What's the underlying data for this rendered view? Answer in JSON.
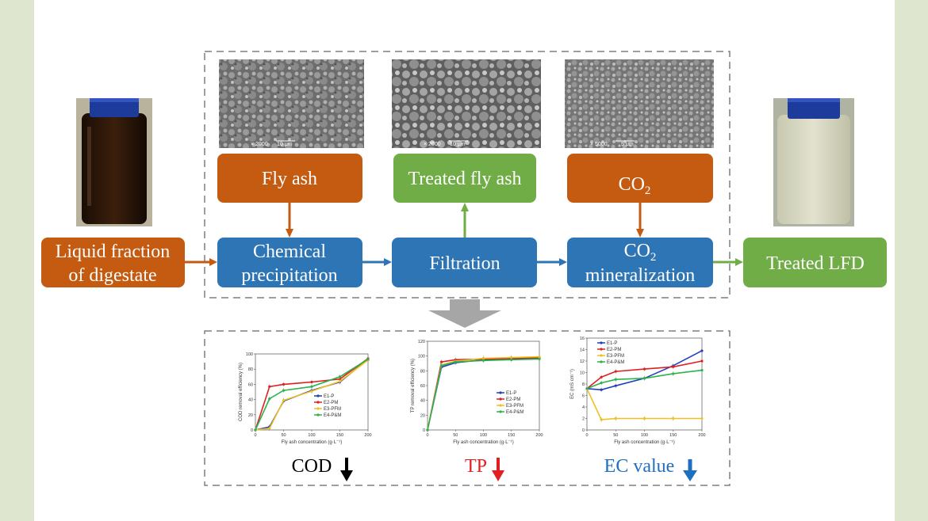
{
  "colors": {
    "orange": "#c55a11",
    "blue": "#2e75b6",
    "green": "#70ad47",
    "e1": "#1f3fbf",
    "e2": "#e02020",
    "e3": "#f0c020",
    "e4": "#2cb34a",
    "tp_arrow": "#e02020",
    "ec_arrow": "#1f6fc0",
    "cod_arrow": "#000000"
  },
  "flow": {
    "input": {
      "line1": "Liquid fraction",
      "line2": "of digestate"
    },
    "fly_ash": "Fly ash",
    "treated_fly_ash": "Treated fly ash",
    "co2": {
      "main": "CO",
      "sub": "2"
    },
    "chemical_precipitation": {
      "line1": "Chemical",
      "line2": "precipitation"
    },
    "filtration": "Filtration",
    "co2_mineralization": {
      "main": "CO",
      "sub": "2",
      "line2": "mineralization"
    },
    "output": "Treated LFD"
  },
  "sem_images": [
    {
      "magnification": "× 2000",
      "scale": "10 μm"
    },
    {
      "magnification": "× 2000",
      "scale": "10 μm"
    },
    {
      "magnification": "× 5000",
      "scale": "5 μm"
    }
  ],
  "indicators": {
    "cod": "COD",
    "tp": "TP",
    "ec": "EC value"
  },
  "chart_data": [
    {
      "type": "line",
      "xlabel": "Fly ash concentration (g·L⁻¹)",
      "ylabel": "COD removal efficiency (%)",
      "xlim": [
        0,
        200
      ],
      "ylim": [
        0,
        100
      ],
      "xticks": [
        0,
        50,
        100,
        150,
        200
      ],
      "yticks": [
        0,
        20,
        40,
        60,
        80,
        100
      ],
      "legend": "center-right",
      "series": [
        {
          "name": "E1-P",
          "x": [
            0,
            25,
            50,
            100,
            150,
            200
          ],
          "y": [
            0,
            4,
            38,
            52,
            63,
            93
          ]
        },
        {
          "name": "E2-PM",
          "x": [
            0,
            25,
            50,
            100,
            150,
            200
          ],
          "y": [
            0,
            57,
            60,
            63,
            67,
            94
          ]
        },
        {
          "name": "E3-PFM",
          "x": [
            0,
            25,
            50,
            100,
            150,
            200
          ],
          "y": [
            0,
            2,
            39,
            51,
            64,
            92
          ]
        },
        {
          "name": "E4-P&M",
          "x": [
            0,
            25,
            50,
            100,
            150,
            200
          ],
          "y": [
            0,
            41,
            52,
            57,
            70,
            93
          ]
        }
      ]
    },
    {
      "type": "line",
      "xlabel": "Fly ash concentration (g·L⁻¹)",
      "ylabel": "TP removal efficiency (%)",
      "xlim": [
        0,
        200
      ],
      "ylim": [
        0,
        120
      ],
      "xticks": [
        0,
        50,
        100,
        150,
        200
      ],
      "yticks": [
        0,
        20,
        40,
        60,
        80,
        100,
        120
      ],
      "legend": "lower-right",
      "series": [
        {
          "name": "E1-P",
          "x": [
            0,
            25,
            50,
            100,
            150,
            200
          ],
          "y": [
            0,
            85,
            91,
            95,
            96,
            97
          ]
        },
        {
          "name": "E2-PM",
          "x": [
            0,
            25,
            50,
            100,
            150,
            200
          ],
          "y": [
            0,
            92,
            95,
            96,
            97,
            98
          ]
        },
        {
          "name": "E3-PFM",
          "x": [
            0,
            25,
            50,
            100,
            150,
            200
          ],
          "y": [
            0,
            88,
            93,
            97,
            98,
            99
          ]
        },
        {
          "name": "E4-P&M",
          "x": [
            0,
            25,
            50,
            100,
            150,
            200
          ],
          "y": [
            0,
            87,
            92,
            94,
            95,
            96
          ]
        }
      ]
    },
    {
      "type": "line",
      "xlabel": "Fly ash concentration (g·L⁻¹)",
      "ylabel": "EC (mS cm⁻¹)",
      "xlim": [
        0,
        200
      ],
      "ylim": [
        0,
        16
      ],
      "xticks": [
        0,
        50,
        100,
        150,
        200
      ],
      "yticks": [
        0,
        2,
        4,
        6,
        8,
        10,
        12,
        14,
        16
      ],
      "legend": "top-left",
      "series": [
        {
          "name": "E1-P",
          "x": [
            0,
            25,
            50,
            100,
            150,
            200
          ],
          "y": [
            7.2,
            7.0,
            7.7,
            9.0,
            11.2,
            13.8
          ]
        },
        {
          "name": "E2-PM",
          "x": [
            0,
            25,
            50,
            100,
            150,
            200
          ],
          "y": [
            7.2,
            9.2,
            10.2,
            10.6,
            11.0,
            12.0
          ]
        },
        {
          "name": "E3-PFM",
          "x": [
            0,
            25,
            50,
            100,
            150,
            200
          ],
          "y": [
            7.2,
            1.8,
            2.0,
            2.0,
            2.0,
            2.0
          ]
        },
        {
          "name": "E4-P&M",
          "x": [
            0,
            25,
            50,
            100,
            150,
            200
          ],
          "y": [
            7.2,
            8.2,
            8.8,
            9.0,
            9.8,
            10.4
          ]
        }
      ]
    }
  ]
}
